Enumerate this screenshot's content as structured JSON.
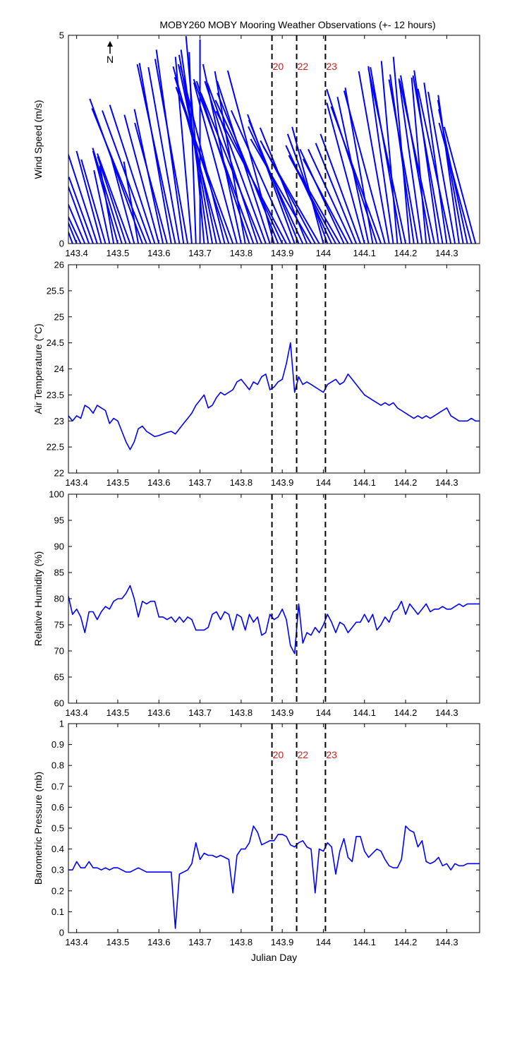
{
  "figure": {
    "title": "MOBY260 MOBY Mooring Weather Observations (+- 12 hours)",
    "north_label": "N",
    "line_color": "#0000ff",
    "marker_color": "#000000",
    "marker_label_color": "#cc2222"
  },
  "chart_data": [
    {
      "type": "vector",
      "ylabel": "Wind Speed (m/s)",
      "xlabel": "Julian Day",
      "xlim": [
        143.38,
        144.38
      ],
      "ylim": [
        0,
        5
      ],
      "xticks": [
        143.4,
        143.5,
        143.6,
        143.7,
        143.8,
        143.9,
        144,
        144.1,
        144.2,
        144.3
      ],
      "yticks": [
        0,
        5
      ],
      "grid": false,
      "vertical_markers": [
        143.875,
        143.935,
        144.005
      ],
      "marker_labels": [
        "20",
        "22",
        "23"
      ],
      "x": [
        143.39,
        143.4,
        143.41,
        143.42,
        143.43,
        143.44,
        143.45,
        143.46,
        143.47,
        143.48,
        143.49,
        143.5,
        143.51,
        143.52,
        143.53,
        143.54,
        143.55,
        143.56,
        143.57,
        143.58,
        143.59,
        143.6,
        143.61,
        143.62,
        143.63,
        143.64,
        143.65,
        143.66,
        143.67,
        143.68,
        143.69,
        143.7,
        143.71,
        143.72,
        143.73,
        143.74,
        143.75,
        143.76,
        143.77,
        143.78,
        143.79,
        143.8,
        143.81,
        143.82,
        143.83,
        143.84,
        143.85,
        143.86,
        143.87,
        143.88,
        143.89,
        143.9,
        143.91,
        143.92,
        143.93,
        143.94,
        143.95,
        143.96,
        143.97,
        143.98,
        143.99,
        144.0,
        144.01,
        144.02,
        144.03,
        144.04,
        144.05,
        144.06,
        144.07,
        144.08,
        144.09,
        144.1,
        144.11,
        144.12,
        144.13,
        144.14,
        144.15,
        144.16,
        144.17,
        144.18,
        144.19,
        144.2,
        144.21,
        144.22,
        144.23,
        144.24,
        144.25,
        144.26,
        144.27,
        144.28,
        144.29,
        144.3,
        144.31,
        144.32,
        144.33,
        144.34,
        144.35,
        144.36,
        144.37
      ],
      "speed": [
        2.6,
        2.9,
        3.3,
        3.5,
        3.7,
        1.7,
        2.4,
        2.3,
        2.1,
        1.8,
        1.9,
        2.3,
        2.4,
        2.2,
        2.3,
        2.1,
        2.0,
        3.7,
        3.5,
        3.4,
        3.5,
        3.2,
        3.3,
        3.0,
        4.4,
        4.4,
        4.3,
        4.7,
        4.5,
        4.5,
        4.6,
        4.9,
        5.0,
        4.7,
        4.6,
        4.4,
        4.4,
        4.4,
        4.2,
        4.0,
        4.0,
        4.4,
        4.2,
        4.1,
        4.2,
        4.1,
        3.9,
        4.1,
        4.1,
        4.3,
        3.9,
        3.8,
        3.6,
        3.5,
        3.3,
        3.2,
        3.1,
        3.0,
        2.9,
        2.8,
        2.7,
        2.9,
        2.8,
        2.6,
        2.4,
        2.2,
        2.5,
        2.3,
        2.5,
        2.6,
        2.8,
        3.5,
        3.6,
        3.8,
        3.9,
        3.5,
        3.8,
        4.2,
        4.3,
        4.4,
        4.3,
        4.3,
        4.5,
        4.1,
        4.0,
        4.0,
        4.0,
        4.1,
        4.0,
        4.2,
        4.1,
        3.9,
        3.8,
        3.7,
        3.6,
        3.5,
        3.3,
        3.0,
        2.9
      ],
      "direction_deg": [
        340,
        338,
        335,
        337,
        340,
        340,
        342,
        345,
        344,
        348,
        350,
        345,
        343,
        342,
        340,
        345,
        350,
        340,
        338,
        340,
        342,
        345,
        348,
        345,
        350,
        348,
        350,
        352,
        350,
        355,
        358,
        0,
        355,
        352,
        350,
        348,
        345,
        346,
        342,
        340,
        345,
        348,
        350,
        342,
        340,
        342,
        338,
        340,
        342,
        345,
        338,
        335,
        332,
        336,
        340,
        338,
        335,
        338,
        330,
        332,
        330,
        345,
        340,
        335,
        332,
        330,
        335,
        332,
        335,
        338,
        340,
        345,
        348,
        350,
        342,
        340,
        345,
        350,
        352,
        355,
        350,
        348,
        355,
        352,
        350,
        352,
        355,
        350,
        348,
        352,
        350,
        352,
        348,
        350,
        352,
        350,
        348,
        345,
        345
      ]
    },
    {
      "type": "line",
      "ylabel": "Air Temperature (°C)",
      "xlim": [
        143.38,
        144.38
      ],
      "ylim": [
        22,
        26
      ],
      "xticks": [
        143.4,
        143.5,
        143.6,
        143.7,
        143.8,
        143.9,
        144,
        144.1,
        144.2,
        144.3
      ],
      "yticks": [
        22,
        22.5,
        23,
        23.5,
        24,
        24.5,
        25,
        25.5,
        26
      ],
      "grid": false,
      "vertical_markers": [
        143.875,
        143.935,
        144.005
      ],
      "x": [
        143.38,
        143.39,
        143.4,
        143.41,
        143.42,
        143.43,
        143.44,
        143.45,
        143.46,
        143.47,
        143.48,
        143.49,
        143.5,
        143.51,
        143.52,
        143.53,
        143.54,
        143.55,
        143.56,
        143.57,
        143.58,
        143.59,
        143.6,
        143.61,
        143.62,
        143.63,
        143.64,
        143.65,
        143.66,
        143.67,
        143.68,
        143.69,
        143.7,
        143.71,
        143.72,
        143.73,
        143.74,
        143.75,
        143.76,
        143.77,
        143.78,
        143.79,
        143.8,
        143.81,
        143.82,
        143.83,
        143.84,
        143.85,
        143.86,
        143.87,
        143.88,
        143.89,
        143.9,
        143.91,
        143.92,
        143.93,
        143.94,
        143.95,
        143.96,
        143.97,
        143.98,
        143.99,
        144.0,
        144.01,
        144.02,
        144.03,
        144.04,
        144.05,
        144.06,
        144.07,
        144.08,
        144.09,
        144.1,
        144.11,
        144.12,
        144.13,
        144.14,
        144.15,
        144.16,
        144.17,
        144.18,
        144.19,
        144.2,
        144.21,
        144.22,
        144.23,
        144.24,
        144.25,
        144.26,
        144.27,
        144.28,
        144.29,
        144.3,
        144.31,
        144.32,
        144.33,
        144.34,
        144.35,
        144.36,
        144.37,
        144.38
      ],
      "y": [
        23.1,
        23.0,
        23.1,
        23.05,
        23.3,
        23.25,
        23.15,
        23.3,
        23.25,
        23.2,
        22.95,
        23.05,
        23.0,
        22.8,
        22.6,
        22.45,
        22.6,
        22.85,
        22.9,
        22.8,
        22.75,
        22.7,
        22.72,
        22.75,
        22.78,
        22.8,
        22.75,
        22.85,
        22.95,
        23.05,
        23.15,
        23.3,
        23.4,
        23.5,
        23.25,
        23.3,
        23.45,
        23.55,
        23.5,
        23.55,
        23.6,
        23.75,
        23.8,
        23.7,
        23.6,
        23.75,
        23.7,
        23.85,
        23.9,
        23.6,
        23.65,
        23.75,
        23.8,
        24.1,
        24.5,
        23.55,
        23.85,
        23.7,
        23.75,
        23.7,
        23.65,
        23.6,
        23.55,
        23.7,
        23.75,
        23.8,
        23.7,
        23.75,
        23.9,
        23.8,
        23.7,
        23.6,
        23.5,
        23.45,
        23.4,
        23.35,
        23.3,
        23.35,
        23.3,
        23.35,
        23.25,
        23.2,
        23.15,
        23.1,
        23.05,
        23.1,
        23.05,
        23.1,
        23.05,
        23.1,
        23.15,
        23.2,
        23.25,
        23.1,
        23.05,
        23.0,
        23.0,
        23.0,
        23.05,
        23.0,
        23.0
      ]
    },
    {
      "type": "line",
      "ylabel": "Relative Humidity (%)",
      "xlim": [
        143.38,
        144.38
      ],
      "ylim": [
        60,
        100
      ],
      "xticks": [
        143.4,
        143.5,
        143.6,
        143.7,
        143.8,
        143.9,
        144,
        144.1,
        144.2,
        144.3
      ],
      "yticks": [
        60,
        65,
        70,
        75,
        80,
        85,
        90,
        95,
        100
      ],
      "grid": false,
      "vertical_markers": [
        143.875,
        143.935,
        144.005
      ],
      "x": [
        143.38,
        143.39,
        143.4,
        143.41,
        143.42,
        143.43,
        143.44,
        143.45,
        143.46,
        143.47,
        143.48,
        143.49,
        143.5,
        143.51,
        143.52,
        143.53,
        143.54,
        143.55,
        143.56,
        143.57,
        143.58,
        143.59,
        143.6,
        143.61,
        143.62,
        143.63,
        143.64,
        143.65,
        143.66,
        143.67,
        143.68,
        143.69,
        143.7,
        143.71,
        143.72,
        143.73,
        143.74,
        143.75,
        143.76,
        143.77,
        143.78,
        143.79,
        143.8,
        143.81,
        143.82,
        143.83,
        143.84,
        143.85,
        143.86,
        143.87,
        143.88,
        143.89,
        143.9,
        143.91,
        143.92,
        143.93,
        143.94,
        143.95,
        143.96,
        143.97,
        143.98,
        143.99,
        144.0,
        144.01,
        144.02,
        144.03,
        144.04,
        144.05,
        144.06,
        144.07,
        144.08,
        144.09,
        144.1,
        144.11,
        144.12,
        144.13,
        144.14,
        144.15,
        144.16,
        144.17,
        144.18,
        144.19,
        144.2,
        144.21,
        144.22,
        144.23,
        144.24,
        144.25,
        144.26,
        144.27,
        144.28,
        144.29,
        144.3,
        144.31,
        144.32,
        144.33,
        144.34,
        144.35,
        144.36,
        144.37,
        144.38
      ],
      "y": [
        80.5,
        77.0,
        78.0,
        76.5,
        73.5,
        77.5,
        77.5,
        76.0,
        77.5,
        78.5,
        78.0,
        79.5,
        80.0,
        80.0,
        81.0,
        82.5,
        80.0,
        76.5,
        79.5,
        79.0,
        79.5,
        79.5,
        76.5,
        76.5,
        76.0,
        76.5,
        75.5,
        76.5,
        75.5,
        76.5,
        76.0,
        74.0,
        74.0,
        74.0,
        74.5,
        77.0,
        77.5,
        76.0,
        77.5,
        77.0,
        74.0,
        77.0,
        76.5,
        74.0,
        77.0,
        75.5,
        76.5,
        73.0,
        73.5,
        77.0,
        76.0,
        76.5,
        78.0,
        76.0,
        71.0,
        69.5,
        79.0,
        71.5,
        73.5,
        73.0,
        74.5,
        73.5,
        75.0,
        77.0,
        75.5,
        73.5,
        75.5,
        75.0,
        73.5,
        74.5,
        75.5,
        75.5,
        77.0,
        75.5,
        77.0,
        74.0,
        75.0,
        76.5,
        75.5,
        77.5,
        78.0,
        79.5,
        77.0,
        79.0,
        78.0,
        77.0,
        78.0,
        79.0,
        77.5,
        78.0,
        78.0,
        78.5,
        78.0,
        78.0,
        78.5,
        79.0,
        78.5,
        79.0,
        79.0,
        79.0,
        79.0
      ]
    },
    {
      "type": "line",
      "ylabel": "Barometric Pressure (mb)",
      "xlabel": "Julian Day",
      "xlim": [
        143.38,
        144.38
      ],
      "ylim": [
        0,
        1
      ],
      "xticks": [
        143.4,
        143.5,
        143.6,
        143.7,
        143.8,
        143.9,
        144,
        144.1,
        144.2,
        144.3
      ],
      "yticks": [
        0,
        0.1,
        0.2,
        0.3,
        0.4,
        0.5,
        0.6,
        0.7,
        0.8,
        0.9,
        1
      ],
      "grid": false,
      "vertical_markers": [
        143.875,
        143.935,
        144.005
      ],
      "marker_labels": [
        "20",
        "22",
        "23"
      ],
      "x": [
        143.38,
        143.39,
        143.4,
        143.41,
        143.42,
        143.43,
        143.44,
        143.45,
        143.46,
        143.47,
        143.48,
        143.49,
        143.5,
        143.51,
        143.52,
        143.53,
        143.54,
        143.55,
        143.56,
        143.57,
        143.58,
        143.59,
        143.6,
        143.61,
        143.62,
        143.63,
        143.64,
        143.65,
        143.66,
        143.67,
        143.68,
        143.69,
        143.7,
        143.71,
        143.72,
        143.73,
        143.74,
        143.75,
        143.76,
        143.77,
        143.78,
        143.79,
        143.8,
        143.81,
        143.82,
        143.83,
        143.84,
        143.85,
        143.86,
        143.87,
        143.88,
        143.89,
        143.9,
        143.91,
        143.92,
        143.93,
        143.94,
        143.95,
        143.96,
        143.97,
        143.98,
        143.99,
        144.0,
        144.01,
        144.02,
        144.03,
        144.04,
        144.05,
        144.06,
        144.07,
        144.08,
        144.09,
        144.1,
        144.11,
        144.12,
        144.13,
        144.14,
        144.15,
        144.16,
        144.17,
        144.18,
        144.19,
        144.2,
        144.21,
        144.22,
        144.23,
        144.24,
        144.25,
        144.26,
        144.27,
        144.28,
        144.29,
        144.3,
        144.31,
        144.32,
        144.33,
        144.34,
        144.35,
        144.36,
        144.37,
        144.38
      ],
      "y": [
        0.3,
        0.3,
        0.34,
        0.31,
        0.31,
        0.34,
        0.31,
        0.31,
        0.3,
        0.31,
        0.3,
        0.31,
        0.31,
        0.3,
        0.29,
        0.29,
        0.3,
        0.31,
        0.3,
        0.29,
        0.29,
        0.29,
        0.29,
        0.29,
        0.29,
        0.29,
        0.02,
        0.28,
        0.29,
        0.3,
        0.33,
        0.43,
        0.35,
        0.38,
        0.37,
        0.37,
        0.36,
        0.37,
        0.36,
        0.35,
        0.19,
        0.37,
        0.4,
        0.4,
        0.43,
        0.51,
        0.48,
        0.42,
        0.43,
        0.44,
        0.44,
        0.47,
        0.47,
        0.46,
        0.42,
        0.41,
        0.43,
        0.44,
        0.41,
        0.4,
        0.19,
        0.4,
        0.39,
        0.43,
        0.41,
        0.28,
        0.39,
        0.45,
        0.36,
        0.34,
        0.46,
        0.46,
        0.39,
        0.36,
        0.38,
        0.4,
        0.39,
        0.35,
        0.32,
        0.31,
        0.31,
        0.35,
        0.51,
        0.49,
        0.48,
        0.41,
        0.44,
        0.34,
        0.33,
        0.34,
        0.36,
        0.32,
        0.33,
        0.3,
        0.33,
        0.32,
        0.32,
        0.33,
        0.33,
        0.33,
        0.33
      ]
    }
  ]
}
